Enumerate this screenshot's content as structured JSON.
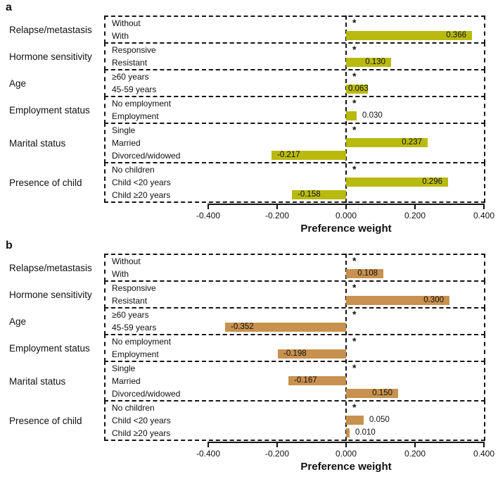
{
  "chart_data": [
    {
      "type": "bar",
      "orientation": "horizontal",
      "panel_label": "a",
      "bar_color": "#b9ba10",
      "xlabel": "Preference weight",
      "xlim": [
        -0.4,
        0.4
      ],
      "grid": false,
      "significance_note": "* marks the reference level of each attribute",
      "xticks": [
        {
          "value": -0.4,
          "label": "-0.400"
        },
        {
          "value": -0.2,
          "label": "-0.200"
        },
        {
          "value": 0.0,
          "label": "0.000"
        },
        {
          "value": 0.2,
          "label": "0.200"
        },
        {
          "value": 0.4,
          "label": "0.400"
        }
      ],
      "groups": [
        {
          "category": "Relapse/metastasis",
          "rows": [
            {
              "label": "Without",
              "reference": true,
              "sig_marker": "*"
            },
            {
              "label": "With",
              "value": 0.366,
              "value_label": "0.366"
            }
          ]
        },
        {
          "category": "Hormone sensitivity",
          "rows": [
            {
              "label": "Responsive",
              "reference": true,
              "sig_marker": "*"
            },
            {
              "label": "Resistant",
              "value": 0.13,
              "value_label": "0.130"
            }
          ]
        },
        {
          "category": "Age",
          "rows": [
            {
              "label": "≥60 years",
              "reference": true,
              "sig_marker": "*"
            },
            {
              "label": "45-59 years",
              "value": 0.063,
              "value_label": "0.063"
            }
          ]
        },
        {
          "category": "Employment status",
          "rows": [
            {
              "label": "No employment",
              "reference": true,
              "sig_marker": "*"
            },
            {
              "label": "Employment",
              "value": 0.03,
              "value_label": "0.030"
            }
          ]
        },
        {
          "category": "Marital status",
          "rows": [
            {
              "label": "Single",
              "reference": true,
              "sig_marker": "*"
            },
            {
              "label": "Married",
              "value": 0.237,
              "value_label": "0.237"
            },
            {
              "label": "Divorced/widowed",
              "value": -0.217,
              "value_label": "-0.217"
            }
          ]
        },
        {
          "category": "Presence of child",
          "rows": [
            {
              "label": "No children",
              "reference": true,
              "sig_marker": "*"
            },
            {
              "label": "Child <20 years",
              "value": 0.296,
              "value_label": "0.296"
            },
            {
              "label": "Child ≥20 years",
              "value": -0.158,
              "value_label": "-0.158"
            }
          ]
        }
      ]
    },
    {
      "type": "bar",
      "orientation": "horizontal",
      "panel_label": "b",
      "bar_color": "#c8914f",
      "xlabel": "Preference weight",
      "xlim": [
        -0.4,
        0.4
      ],
      "grid": false,
      "significance_note": "* marks the reference level of each attribute",
      "xticks": [
        {
          "value": -0.4,
          "label": "-0.400"
        },
        {
          "value": -0.2,
          "label": "-0.200"
        },
        {
          "value": 0.0,
          "label": "0.000"
        },
        {
          "value": 0.2,
          "label": "0.200"
        },
        {
          "value": 0.4,
          "label": "0.400"
        }
      ],
      "groups": [
        {
          "category": "Relapse/metastasis",
          "rows": [
            {
              "label": "Without",
              "reference": true,
              "sig_marker": "*"
            },
            {
              "label": "With",
              "value": 0.108,
              "value_label": "0.108"
            }
          ]
        },
        {
          "category": "Hormone sensitivity",
          "rows": [
            {
              "label": "Responsive",
              "reference": true,
              "sig_marker": "*"
            },
            {
              "label": "Resistant",
              "value": 0.3,
              "value_label": "0.300"
            }
          ]
        },
        {
          "category": "Age",
          "rows": [
            {
              "label": "≥60 years",
              "reference": true,
              "sig_marker": "*"
            },
            {
              "label": "45-59 years",
              "value": -0.352,
              "value_label": "-0.352"
            }
          ]
        },
        {
          "category": "Employment status",
          "rows": [
            {
              "label": "No employment",
              "reference": true,
              "sig_marker": "*"
            },
            {
              "label": "Employment",
              "value": -0.198,
              "value_label": "-0.198"
            }
          ]
        },
        {
          "category": "Marital status",
          "rows": [
            {
              "label": "Single",
              "reference": true,
              "sig_marker": "*"
            },
            {
              "label": "Married",
              "value": -0.167,
              "value_label": "-0.167"
            },
            {
              "label": "Divorced/widowed",
              "value": 0.15,
              "value_label": "0.150"
            }
          ]
        },
        {
          "category": "Presence of child",
          "rows": [
            {
              "label": "No children",
              "reference": true,
              "sig_marker": "*"
            },
            {
              "label": "Child <20 years",
              "value": 0.05,
              "value_label": "0.050"
            },
            {
              "label": "Child ≥20 years",
              "value": 0.01,
              "value_label": "0.010"
            }
          ]
        }
      ]
    }
  ]
}
